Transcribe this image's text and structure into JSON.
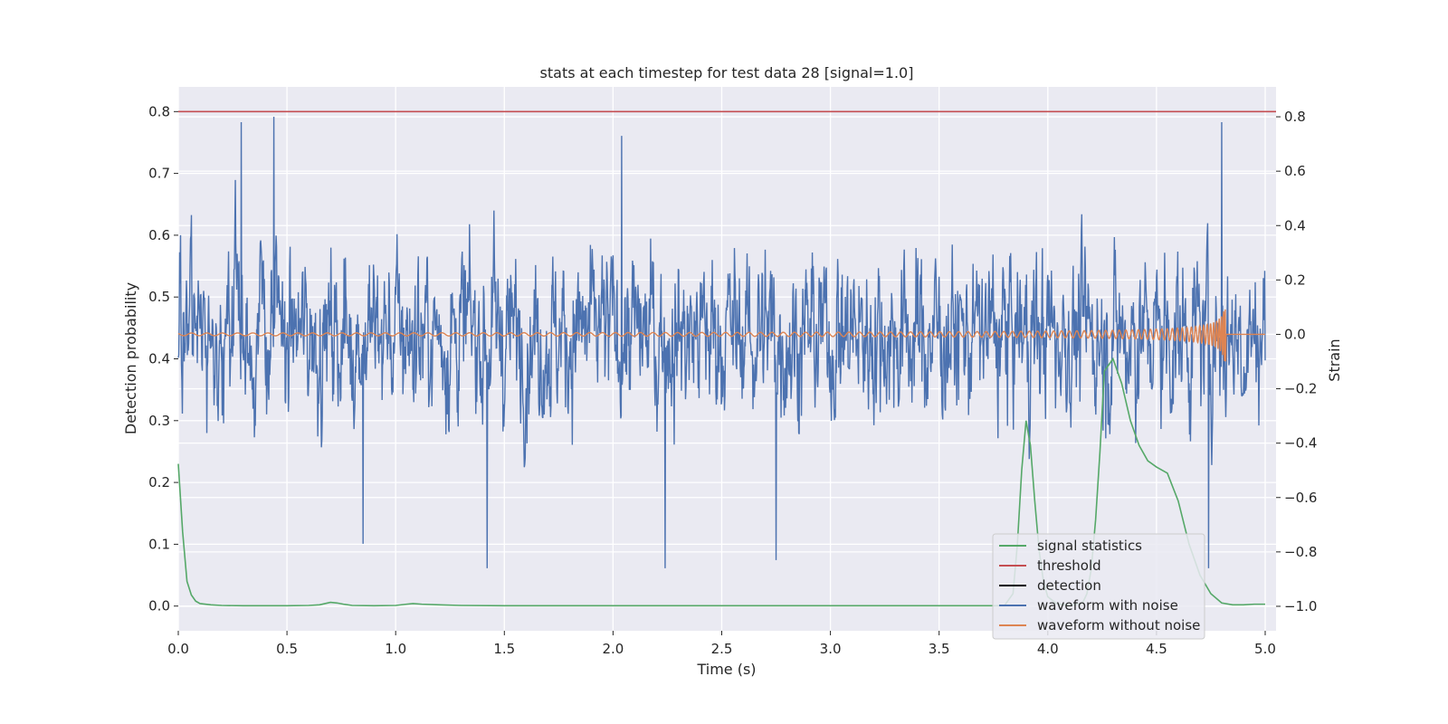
{
  "chart_data": {
    "type": "line",
    "title": "stats at each timestep for test data 28 [signal=1.0]",
    "xlabel": "Time (s)",
    "ylabel_left": "Detection probability",
    "ylabel_right": "Strain",
    "xlim": [
      0.0,
      5.05
    ],
    "ylim_left": [
      -0.04,
      0.84
    ],
    "ylim_right": [
      -1.09,
      0.91
    ],
    "x_ticks": [
      "0.0",
      "0.5",
      "1.0",
      "1.5",
      "2.0",
      "2.5",
      "3.0",
      "3.5",
      "4.0",
      "4.5",
      "5.0"
    ],
    "y_ticks_left": [
      "0.0",
      "0.1",
      "0.2",
      "0.3",
      "0.4",
      "0.5",
      "0.6",
      "0.7",
      "0.8"
    ],
    "y_ticks_right": [
      "−1.0",
      "−0.8",
      "−0.6",
      "−0.4",
      "−0.2",
      "0.0",
      "0.2",
      "0.4",
      "0.6",
      "0.8"
    ],
    "grid": true,
    "legend_position": "lower-right",
    "colors": {
      "signal_statistics": "#55a868",
      "threshold": "#c44e52",
      "detection": "#000000",
      "waveform_with_noise": "#4c72b0",
      "waveform_without_noise": "#dd8452",
      "plot_background": "#eaeaf2",
      "grid": "#ffffff"
    },
    "series": [
      {
        "name": "signal statistics",
        "axis": "left",
        "x": [
          0.0,
          0.02,
          0.04,
          0.06,
          0.08,
          0.1,
          0.15,
          0.2,
          0.3,
          0.5,
          0.6,
          0.65,
          0.7,
          0.73,
          0.76,
          0.8,
          0.9,
          1.0,
          1.05,
          1.08,
          1.12,
          1.2,
          1.3,
          1.5,
          2.0,
          2.5,
          3.0,
          3.5,
          3.8,
          3.84,
          3.86,
          3.88,
          3.9,
          3.92,
          3.94,
          3.96,
          3.98,
          4.0,
          4.04,
          4.08,
          4.12,
          4.16,
          4.18,
          4.2,
          4.22,
          4.24,
          4.26,
          4.3,
          4.34,
          4.38,
          4.42,
          4.46,
          4.5,
          4.55,
          4.6,
          4.65,
          4.7,
          4.75,
          4.8,
          4.85,
          4.9,
          4.95,
          5.0
        ],
        "values": [
          0.23,
          0.12,
          0.04,
          0.018,
          0.008,
          0.004,
          0.002,
          0.001,
          0.0005,
          0.0005,
          0.001,
          0.002,
          0.006,
          0.005,
          0.003,
          0.001,
          0.0005,
          0.001,
          0.003,
          0.004,
          0.003,
          0.002,
          0.001,
          0.0005,
          0.0005,
          0.0005,
          0.0005,
          0.0005,
          0.0005,
          0.02,
          0.1,
          0.22,
          0.3,
          0.26,
          0.17,
          0.09,
          0.04,
          0.015,
          0.004,
          0.002,
          0.002,
          0.005,
          0.02,
          0.06,
          0.14,
          0.25,
          0.38,
          0.4,
          0.36,
          0.3,
          0.26,
          0.235,
          0.225,
          0.215,
          0.17,
          0.1,
          0.05,
          0.02,
          0.005,
          0.002,
          0.002,
          0.003,
          0.003
        ]
      },
      {
        "name": "threshold",
        "axis": "left",
        "x": [
          0.0,
          5.05
        ],
        "values": [
          0.8,
          0.8
        ]
      },
      {
        "name": "detection",
        "axis": "left",
        "x": [],
        "values": []
      },
      {
        "name": "waveform with noise",
        "axis": "right",
        "x_range": [
          0.0,
          5.0
        ],
        "approx_amplitude_range": [
          -0.85,
          0.8
        ],
        "peak_points": [
          {
            "x": 0.44,
            "y": 0.8
          },
          {
            "x": 0.29,
            "y": 0.78
          },
          {
            "x": 2.04,
            "y": 0.73
          },
          {
            "x": 4.8,
            "y": 0.78
          },
          {
            "x": 1.42,
            "y": -0.86
          },
          {
            "x": 2.24,
            "y": -0.86
          },
          {
            "x": 2.75,
            "y": -0.83
          },
          {
            "x": 4.74,
            "y": -0.86
          },
          {
            "x": 0.85,
            "y": -0.77
          }
        ]
      },
      {
        "name": "waveform without noise",
        "axis": "right",
        "x_range": [
          0.0,
          5.0
        ],
        "description_values": {
          "baseline_amplitude": 0.005,
          "max_amplitude": 0.1,
          "merger_time": 4.82
        }
      }
    ]
  }
}
